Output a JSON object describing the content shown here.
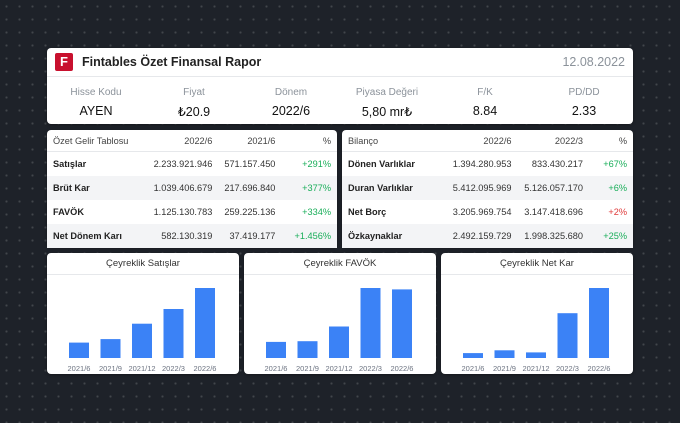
{
  "header": {
    "logo_letter": "F",
    "title": "Fintables Özet Finansal Rapor",
    "date": "12.08.2022",
    "stats": [
      {
        "label": "Hisse Kodu",
        "value": "AYEN"
      },
      {
        "label": "Fiyat",
        "value": "₺20.9"
      },
      {
        "label": "Dönem",
        "value": "2022/6"
      },
      {
        "label": "Piyasa Değeri",
        "value": "5,80 mr₺"
      },
      {
        "label": "F/K",
        "value": "8.84"
      },
      {
        "label": "PD/DD",
        "value": "2.33"
      }
    ]
  },
  "income_table": {
    "headers": [
      "Özet Gelir Tablosu",
      "2022/6",
      "2021/6",
      "%"
    ],
    "rows": [
      {
        "name": "Satışlar",
        "a": "2.233.921.946",
        "b": "571.157.450",
        "pct": "+291%",
        "dir": "pos"
      },
      {
        "name": "Brüt Kar",
        "a": "1.039.406.679",
        "b": "217.696.840",
        "pct": "+377%",
        "dir": "pos"
      },
      {
        "name": "FAVÖK",
        "a": "1.125.130.783",
        "b": "259.225.136",
        "pct": "+334%",
        "dir": "pos"
      },
      {
        "name": "Net Dönem Karı",
        "a": "582.130.319",
        "b": "37.419.177",
        "pct": "+1.456%",
        "dir": "pos"
      }
    ]
  },
  "balance_table": {
    "headers": [
      "Bilanço",
      "2022/6",
      "2022/3",
      "%"
    ],
    "rows": [
      {
        "name": "Dönen Varlıklar",
        "a": "1.394.280.953",
        "b": "833.430.217",
        "pct": "+67%",
        "dir": "pos"
      },
      {
        "name": "Duran Varlıklar",
        "a": "5.412.095.969",
        "b": "5.126.057.170",
        "pct": "+6%",
        "dir": "pos"
      },
      {
        "name": "Net Borç",
        "a": "3.205.969.754",
        "b": "3.147.418.696",
        "pct": "+2%",
        "dir": "neg"
      },
      {
        "name": "Özkaynaklar",
        "a": "2.492.159.729",
        "b": "1.998.325.680",
        "pct": "+25%",
        "dir": "pos"
      }
    ]
  },
  "colors": {
    "bar": "#3b82f6",
    "positive": "#1aae5a",
    "negative": "#e03a3a",
    "logo": "#c8102e"
  },
  "chart_data": [
    {
      "type": "bar",
      "title": "Çeyreklik Satışlar",
      "categories": [
        "2021/6",
        "2021/9",
        "2021/12",
        "2022/3",
        "2022/6"
      ],
      "values": [
        0.22,
        0.27,
        0.49,
        0.7,
        1.0
      ]
    },
    {
      "type": "bar",
      "title": "Çeyreklik FAVÖK",
      "categories": [
        "2021/6",
        "2021/9",
        "2021/12",
        "2022/3",
        "2022/6"
      ],
      "values": [
        0.23,
        0.24,
        0.45,
        1.0,
        0.98
      ]
    },
    {
      "type": "bar",
      "title": "Çeyreklik Net Kar",
      "categories": [
        "2021/6",
        "2021/9",
        "2021/12",
        "2022/3",
        "2022/6"
      ],
      "values": [
        0.07,
        0.11,
        0.08,
        0.64,
        1.0
      ]
    }
  ]
}
